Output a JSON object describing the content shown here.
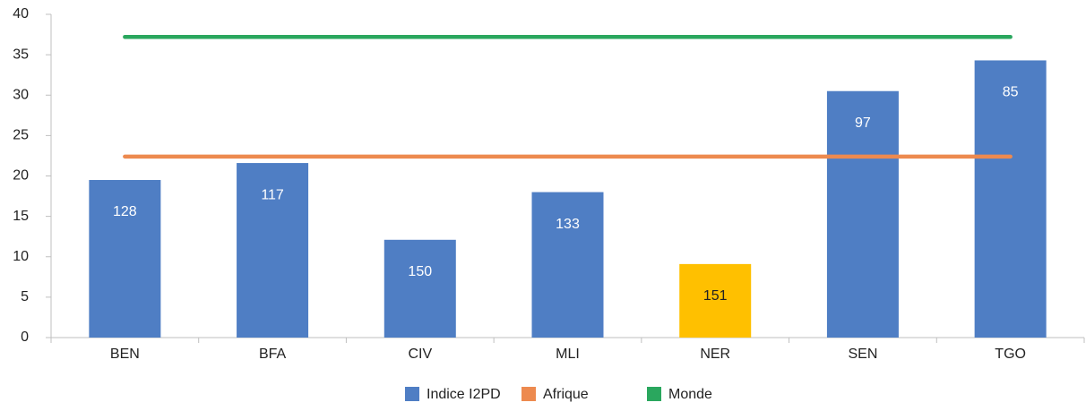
{
  "chart_data": {
    "type": "bar",
    "categories": [
      "BEN",
      "BFA",
      "CIV",
      "MLI",
      "NER",
      "SEN",
      "TGO"
    ],
    "series": [
      {
        "name": "Indice I2PD",
        "type": "bar",
        "color": "#4f7ec4",
        "colors": [
          "#4f7ec4",
          "#4f7ec4",
          "#4f7ec4",
          "#4f7ec4",
          "#ffc000",
          "#4f7ec4",
          "#4f7ec4"
        ],
        "values": [
          19.5,
          21.6,
          12.1,
          18,
          9.1,
          30.5,
          34.3
        ],
        "labels": [
          "128",
          "117",
          "150",
          "133",
          "151",
          "97",
          "85"
        ],
        "label_colors": [
          "#ffffff",
          "#ffffff",
          "#ffffff",
          "#ffffff",
          "#222222",
          "#ffffff",
          "#ffffff"
        ]
      },
      {
        "name": "Afrique",
        "type": "line",
        "color": "#ed8a4f",
        "values": [
          22.4,
          22.4,
          22.4,
          22.4,
          22.4,
          22.4,
          22.4
        ]
      },
      {
        "name": "Monde",
        "type": "line",
        "color": "#2aa75e",
        "values": [
          37.2,
          37.2,
          37.2,
          37.2,
          37.2,
          37.2,
          37.2
        ]
      }
    ],
    "ylim": [
      0,
      40
    ],
    "yticks": [
      0,
      5,
      10,
      15,
      20,
      25,
      30,
      35,
      40
    ],
    "legend": "bottom"
  }
}
